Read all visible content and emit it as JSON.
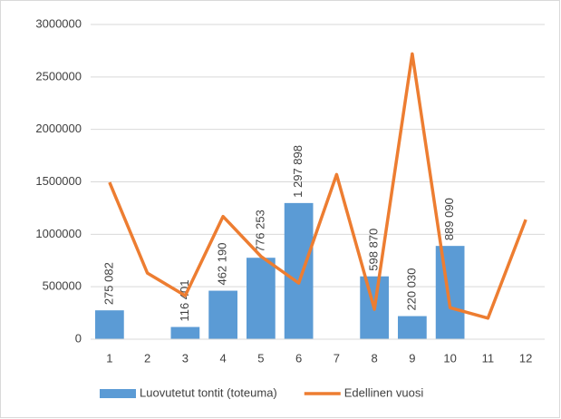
{
  "chart_data": {
    "type": "bar+line",
    "categories": [
      "1",
      "2",
      "3",
      "4",
      "5",
      "6",
      "7",
      "8",
      "9",
      "10",
      "11",
      "12"
    ],
    "series": [
      {
        "name": "Luovutetut tontit (toteuma)",
        "type": "bar",
        "color": "#5b9bd5",
        "values": [
          275082,
          null,
          116401,
          462190,
          776253,
          1297898,
          null,
          598870,
          220030,
          889090,
          null,
          null
        ],
        "value_labels": [
          "275 082",
          null,
          "116 401",
          "462 190",
          "776 253",
          "1 297 898",
          null,
          "598 870",
          "220 030",
          "889 090",
          null,
          null
        ]
      },
      {
        "name": "Edellinen vuosi",
        "type": "line",
        "color": "#ed7d31",
        "values": [
          1495000,
          630000,
          415000,
          1170000,
          790000,
          535000,
          1570000,
          285000,
          2720000,
          300000,
          200000,
          1140000
        ]
      }
    ],
    "ylim": [
      0,
      3000000
    ],
    "yticks": [
      0,
      500000,
      1000000,
      1500000,
      2000000,
      2500000,
      3000000
    ],
    "grid": true,
    "legend": "bottom"
  }
}
